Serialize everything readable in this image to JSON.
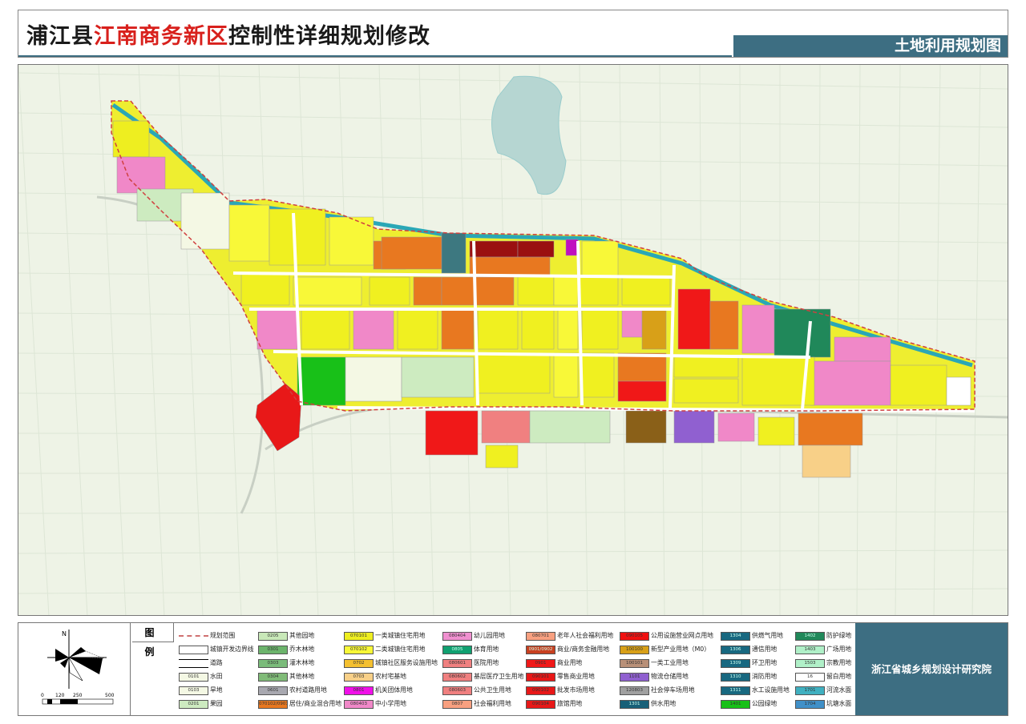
{
  "header": {
    "title_part1": "浦江县",
    "title_part2": "江南商务新区",
    "title_part3": "控制性详细规划修改",
    "subtitle": "土地利用规划图",
    "accent_color": "#3d6e82",
    "title_highlight_color": "#d8201c"
  },
  "legend": {
    "title": "图 例",
    "north_label": "N",
    "scale_labels": [
      "0",
      "120",
      "250",
      "500"
    ],
    "institute": "浙江省城乡规划设计研究院",
    "columns": [
      [
        {
          "code": "",
          "label": "规划范围",
          "color": "dashed-red",
          "style": "boundary"
        },
        {
          "code": "",
          "label": "城镇开发边界线",
          "color": "#ffffff",
          "style": "outline"
        },
        {
          "code": "",
          "label": "道路",
          "color": "#ffffff",
          "style": "road"
        },
        {
          "code": "0101",
          "label": "水田",
          "color": "#f4f8e4"
        },
        {
          "code": "0103",
          "label": "旱地",
          "color": "#f4f8e4"
        },
        {
          "code": "0201",
          "label": "果园",
          "color": "#cdebc0"
        }
      ],
      [
        {
          "code": "0205",
          "label": "其他园地",
          "color": "#c8e8b8"
        },
        {
          "code": "0301",
          "label": "乔木林地",
          "color": "#6cb46c"
        },
        {
          "code": "0303",
          "label": "灌木林地",
          "color": "#7abb7a"
        },
        {
          "code": "0304",
          "label": "其他林地",
          "color": "#80bb78"
        },
        {
          "code": "0601",
          "label": "农村道路用地",
          "color": "#a8a8b0"
        },
        {
          "code": "070102/0901",
          "label": "居住/商业混合用地",
          "color": "#e87820"
        }
      ],
      [
        {
          "code": "070101",
          "label": "一类城镇住宅用地",
          "color": "#eeee20"
        },
        {
          "code": "070102",
          "label": "二类城镇住宅用地",
          "color": "#f8f838"
        },
        {
          "code": "0702",
          "label": "城镇社区服务设施用地",
          "color": "#f4c030"
        },
        {
          "code": "0703",
          "label": "农村宅基地",
          "color": "#f8d088"
        },
        {
          "code": "0801",
          "label": "机关团体用地",
          "color": "#f010e8"
        },
        {
          "code": "080403",
          "label": "中小学用地",
          "color": "#f088c8"
        }
      ],
      [
        {
          "code": "080404",
          "label": "幼儿园用地",
          "color": "#f090d0"
        },
        {
          "code": "0805",
          "label": "体育用地",
          "color": "#10a070"
        },
        {
          "code": "080601",
          "label": "医院用地",
          "color": "#f08080"
        },
        {
          "code": "080602",
          "label": "基层医疗卫生用地",
          "color": "#f08080"
        },
        {
          "code": "080603",
          "label": "公共卫生用地",
          "color": "#f08080"
        },
        {
          "code": "0807",
          "label": "社会福利用地",
          "color": "#f8a080"
        }
      ],
      [
        {
          "code": "080701",
          "label": "老年人社会福利用地",
          "color": "#f8a080"
        },
        {
          "code": "0901/0902",
          "label": "商业/商务金融用地",
          "color": "#c84020"
        },
        {
          "code": "0901",
          "label": "商业用地",
          "color": "#f01818"
        },
        {
          "code": "090101",
          "label": "零售商业用地",
          "color": "#e81818"
        },
        {
          "code": "090102",
          "label": "批发市场用地",
          "color": "#e81818"
        },
        {
          "code": "090104",
          "label": "旅馆用地",
          "color": "#e81818"
        }
      ],
      [
        {
          "code": "090105",
          "label": "公用设施营业网点用地",
          "color": "#f01010"
        },
        {
          "code": "100100",
          "label": "新型产业用地（M0）",
          "color": "#d8a018"
        },
        {
          "code": "100101",
          "label": "一类工业用地",
          "color": "#b89078"
        },
        {
          "code": "1101",
          "label": "物流仓储用地",
          "color": "#9060d0"
        },
        {
          "code": "120803",
          "label": "社会停车场用地",
          "color": "#a0a0a0"
        },
        {
          "code": "1301",
          "label": "供水用地",
          "color": "#186078"
        }
      ],
      [
        {
          "code": "1304",
          "label": "供燃气用地",
          "color": "#186880"
        },
        {
          "code": "1306",
          "label": "通信用地",
          "color": "#186880"
        },
        {
          "code": "1309",
          "label": "环卫用地",
          "color": "#186880"
        },
        {
          "code": "1310",
          "label": "消防用地",
          "color": "#186880"
        },
        {
          "code": "1311",
          "label": "水工设施用地",
          "color": "#186880"
        },
        {
          "code": "1401",
          "label": "公园绿地",
          "color": "#18c018"
        }
      ],
      [
        {
          "code": "1402",
          "label": "防护绿地",
          "color": "#20885a"
        },
        {
          "code": "1403",
          "label": "广场用地",
          "color": "#b0f0c8"
        },
        {
          "code": "1503",
          "label": "宗教用地",
          "color": "#b0f0c8"
        },
        {
          "code": "16",
          "label": "留白用地",
          "color": "#ffffff"
        },
        {
          "code": "1701",
          "label": "河流水面",
          "color": "#40b0c0"
        },
        {
          "code": "1704",
          "label": "坑塘水面",
          "color": "#4090c8"
        }
      ]
    ]
  }
}
